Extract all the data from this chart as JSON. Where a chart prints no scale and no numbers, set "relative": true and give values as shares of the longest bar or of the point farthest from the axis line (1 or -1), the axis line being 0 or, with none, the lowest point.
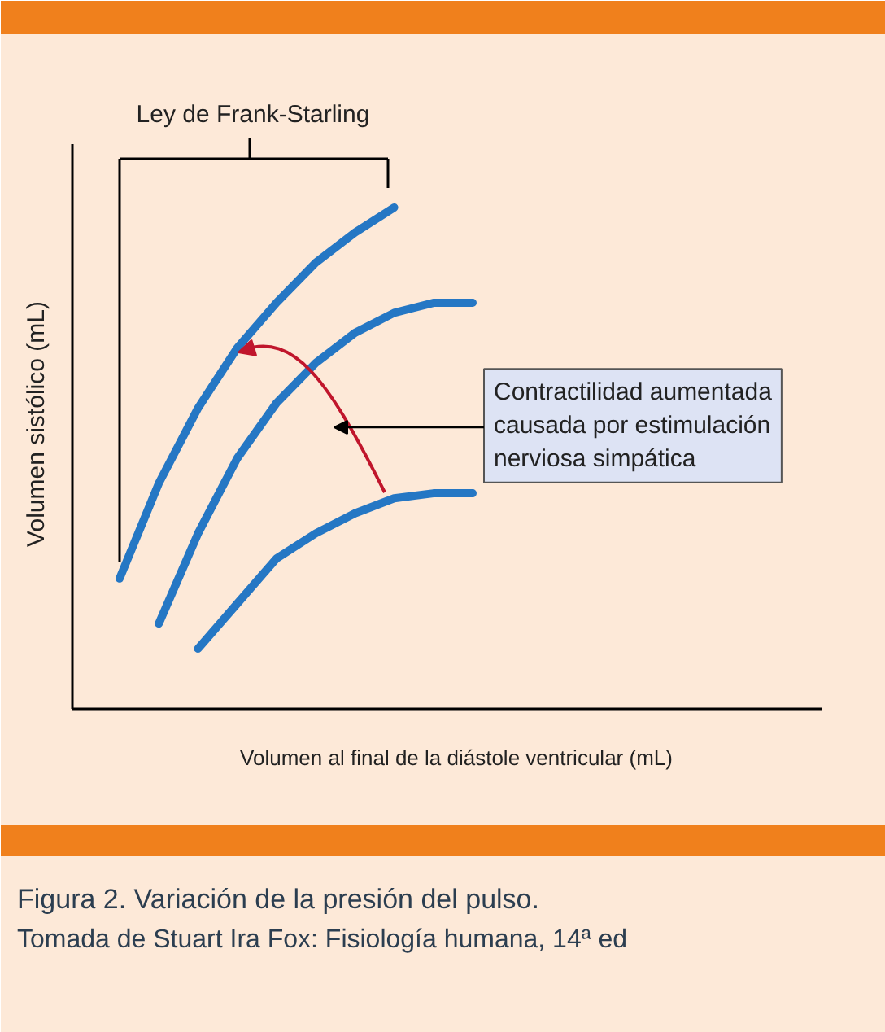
{
  "chart_data": {
    "type": "line",
    "relative": true,
    "categories": [
      null,
      null,
      null,
      null,
      null,
      null,
      null,
      null,
      null,
      null
    ],
    "xlabel": "Volumen al final de la diástole ventricular (mL)",
    "ylabel": "Volumen sistólico (mL)",
    "title": "Figura 2. Variación de la presión del pulso.",
    "annotations": [
      "Ley de Frank-Starling",
      "Contractilidad aumentada\ncausada por estimulación\nnerviosa simpática",
      "Tomada de Stuart Ira Fox: Fisiología humana, 14ª ed"
    ],
    "series": [
      {
        "color": "#2577c4",
        "values": [
          0.26,
          0.45,
          0.6,
          0.72,
          0.81,
          0.89,
          0.95,
          1.0,
          null,
          null
        ]
      },
      {
        "color": "#2577c4",
        "values": [
          null,
          0.17,
          0.35,
          0.5,
          0.61,
          0.69,
          0.75,
          0.79,
          0.81,
          0.81
        ]
      },
      {
        "color": "#2577c4",
        "values": [
          null,
          null,
          0.12,
          0.21,
          0.3,
          0.35,
          0.39,
          0.42,
          0.43,
          0.43
        ]
      }
    ]
  }
}
